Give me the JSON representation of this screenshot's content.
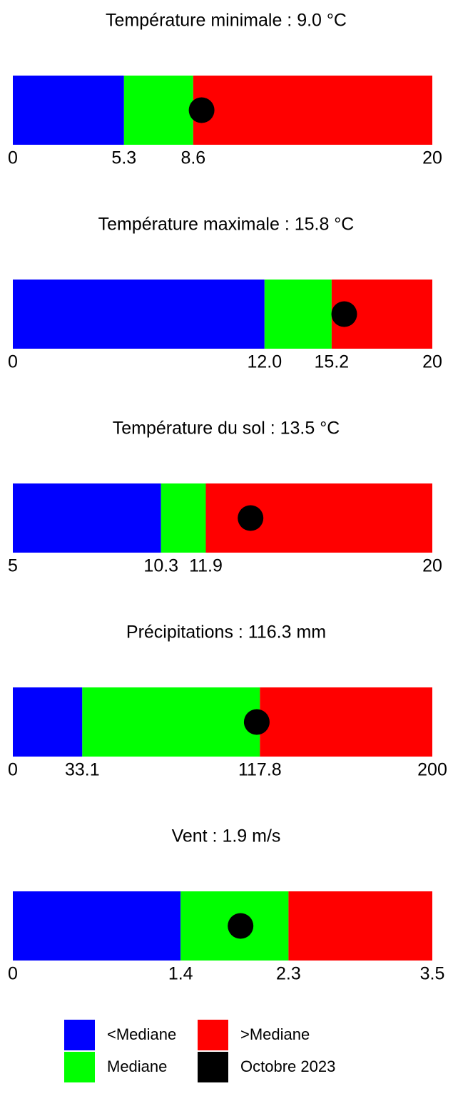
{
  "chart_data": [
    {
      "type": "range",
      "title": "Température minimale : 9.0 °C",
      "value": 9.0,
      "thresholds": [
        5.3,
        8.6
      ],
      "xlim": [
        0,
        20
      ],
      "xticks": [
        0,
        5.3,
        8.6,
        20
      ]
    },
    {
      "type": "range",
      "title": "Température maximale : 15.8 °C",
      "value": 15.8,
      "thresholds": [
        12.0,
        15.2
      ],
      "xlim": [
        0,
        20
      ],
      "xticks": [
        0,
        {
          "value": 12,
          "label": "12.0"
        },
        15.2,
        20
      ]
    },
    {
      "type": "range",
      "title": "Température du sol : 13.5 °C",
      "value": 13.5,
      "thresholds": [
        10.3,
        11.9
      ],
      "xlim": [
        5,
        20
      ],
      "xticks": [
        5,
        10.3,
        11.9,
        20
      ]
    },
    {
      "type": "range",
      "title": "Précipitations : 116.3 mm",
      "value": 116.3,
      "thresholds": [
        33.1,
        117.8
      ],
      "xlim": [
        0,
        200
      ],
      "xticks": [
        0,
        33.1,
        117.8,
        200
      ]
    },
    {
      "type": "range",
      "title": "Vent : 1.9 m/s",
      "value": 1.9,
      "thresholds": [
        1.4,
        2.3
      ],
      "xlim": [
        0,
        3.5
      ],
      "xticks": [
        0,
        1.4,
        2.3,
        3.5
      ]
    }
  ],
  "legend": {
    "items": [
      {
        "label": "<Mediane",
        "color": "#0000ff"
      },
      {
        "label": "Mediane",
        "color": "#00ff00"
      },
      {
        "label": ">Mediane",
        "color": "#ff0000"
      },
      {
        "label": "Octobre 2023",
        "color": "#000000"
      }
    ]
  }
}
